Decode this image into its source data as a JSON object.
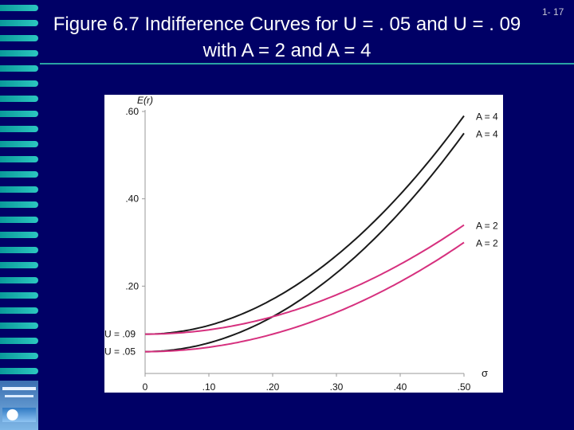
{
  "title": "Figure 6.7 Indifference Curves for U = . 05 and U = . 09 with A = 2 and A = 4",
  "slide_number": "1- 17",
  "colors": {
    "background": "#000066",
    "accent": "#29a3a3",
    "black_curve": "#1a1a1a",
    "pink_curve": "#d6307e"
  },
  "chart_data": {
    "type": "line",
    "ylabel": "E(r)",
    "xlabel": "σ",
    "xlim": [
      0,
      0.5
    ],
    "ylim": [
      0,
      0.6
    ],
    "x_ticks": [
      {
        "value": 0,
        "label": "0"
      },
      {
        "value": 0.1,
        "label": ".10"
      },
      {
        "value": 0.2,
        "label": ".20"
      },
      {
        "value": 0.3,
        "label": ".30"
      },
      {
        "value": 0.4,
        "label": ".40"
      },
      {
        "value": 0.5,
        "label": ".50"
      }
    ],
    "y_ticks": [
      {
        "value": 0.2,
        "label": ".20"
      },
      {
        "value": 0.4,
        "label": ".40"
      },
      {
        "value": 0.6,
        "label": ".60"
      }
    ],
    "annotations": [
      {
        "text": "U = .09",
        "y": 0.09
      },
      {
        "text": "U = .05",
        "y": 0.05
      }
    ],
    "series": [
      {
        "label": "A = 4",
        "U": 0.09,
        "A": 4,
        "color": "#1a1a1a"
      },
      {
        "label": "A = 4",
        "U": 0.05,
        "A": 4,
        "color": "#1a1a1a"
      },
      {
        "label": "A = 2",
        "U": 0.09,
        "A": 2,
        "color": "#d6307e"
      },
      {
        "label": "A = 2",
        "U": 0.05,
        "A": 2,
        "color": "#d6307e"
      }
    ],
    "grid": false
  }
}
